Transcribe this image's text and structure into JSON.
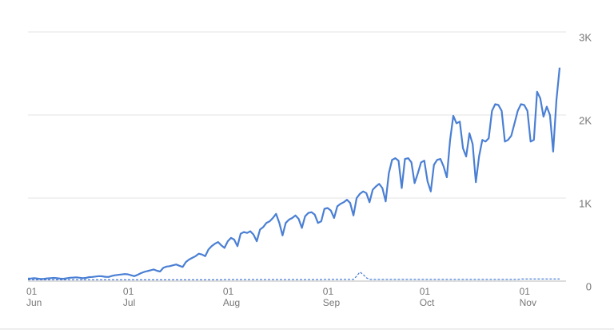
{
  "chart_data": {
    "type": "line",
    "categories": [
      "01\nJun",
      null,
      null,
      null,
      null,
      null,
      null,
      null,
      null,
      null,
      null,
      null,
      null,
      null,
      null,
      null,
      null,
      null,
      null,
      null,
      null,
      null,
      null,
      null,
      null,
      null,
      null,
      null,
      null,
      null,
      "01\nJul",
      null,
      null,
      null,
      null,
      null,
      null,
      null,
      null,
      null,
      null,
      null,
      null,
      null,
      null,
      null,
      null,
      null,
      null,
      null,
      null,
      null,
      null,
      null,
      null,
      null,
      null,
      null,
      null,
      null,
      null,
      "01\nAug",
      null,
      null,
      null,
      null,
      null,
      null,
      null,
      null,
      null,
      null,
      null,
      null,
      null,
      null,
      null,
      null,
      null,
      null,
      null,
      null,
      null,
      null,
      null,
      null,
      null,
      null,
      null,
      null,
      null,
      null,
      "01\nSep",
      null,
      null,
      null,
      null,
      null,
      null,
      null,
      null,
      null,
      null,
      null,
      null,
      null,
      null,
      null,
      null,
      null,
      null,
      null,
      null,
      null,
      null,
      null,
      null,
      null,
      null,
      null,
      null,
      null,
      "01\nOct",
      null,
      null,
      null,
      null,
      null,
      null,
      null,
      null,
      null,
      null,
      null,
      null,
      null,
      null,
      null,
      null,
      null,
      null,
      null,
      null,
      null,
      null,
      null,
      null,
      null,
      null,
      null,
      null,
      null,
      null,
      "01\nNov",
      null,
      null,
      null,
      null,
      null,
      null,
      null,
      null,
      null,
      null,
      null,
      null
    ],
    "series": [
      {
        "color": "#4a7fd4",
        "dashed": false,
        "values": [
          30,
          32,
          35,
          30,
          25,
          28,
          33,
          36,
          38,
          35,
          30,
          28,
          34,
          40,
          42,
          45,
          40,
          35,
          38,
          48,
          50,
          55,
          60,
          58,
          52,
          50,
          62,
          70,
          75,
          80,
          85,
          82,
          70,
          60,
          75,
          95,
          110,
          120,
          130,
          140,
          125,
          115,
          160,
          175,
          180,
          190,
          200,
          185,
          170,
          230,
          260,
          280,
          300,
          330,
          320,
          300,
          380,
          420,
          450,
          470,
          430,
          400,
          480,
          520,
          500,
          420,
          570,
          590,
          580,
          600,
          560,
          480,
          620,
          650,
          700,
          720,
          760,
          810,
          700,
          550,
          700,
          740,
          760,
          790,
          750,
          640,
          780,
          820,
          830,
          800,
          700,
          720,
          870,
          880,
          850,
          760,
          900,
          930,
          950,
          980,
          940,
          790,
          1000,
          1050,
          1080,
          1060,
          950,
          1100,
          1140,
          1170,
          1120,
          960,
          1300,
          1460,
          1480,
          1450,
          1120,
          1470,
          1480,
          1430,
          1180,
          1300,
          1430,
          1450,
          1200,
          1080,
          1400,
          1460,
          1470,
          1380,
          1250,
          1700,
          1990,
          1900,
          1920,
          1600,
          1500,
          1780,
          1650,
          1190,
          1500,
          1700,
          1680,
          1720,
          2050,
          2130,
          2120,
          2050,
          1680,
          1700,
          1750,
          1900,
          2050,
          2130,
          2120,
          2050,
          1680,
          1700,
          2280,
          2200,
          1980,
          2100,
          2000,
          1560,
          2180,
          2570
        ]
      },
      {
        "color": "#4a7fd4",
        "dashed": true,
        "values": [
          15,
          15,
          15,
          15,
          15,
          15,
          15,
          15,
          15,
          15,
          15,
          15,
          15,
          15,
          15,
          15,
          15,
          15,
          15,
          15,
          15,
          15,
          15,
          15,
          15,
          15,
          15,
          15,
          15,
          15,
          15,
          15,
          15,
          15,
          15,
          15,
          15,
          15,
          15,
          15,
          15,
          15,
          15,
          15,
          15,
          15,
          15,
          15,
          15,
          15,
          15,
          15,
          15,
          15,
          15,
          15,
          15,
          15,
          15,
          15,
          15,
          18,
          18,
          18,
          18,
          18,
          18,
          18,
          18,
          18,
          18,
          18,
          18,
          18,
          18,
          18,
          18,
          18,
          18,
          18,
          18,
          18,
          18,
          18,
          18,
          18,
          18,
          18,
          18,
          18,
          18,
          18,
          20,
          20,
          20,
          20,
          20,
          20,
          20,
          20,
          20,
          20,
          60,
          110,
          80,
          40,
          20,
          20,
          20,
          20,
          20,
          20,
          20,
          20,
          20,
          20,
          20,
          20,
          20,
          20,
          20,
          20,
          20,
          20,
          20,
          20,
          20,
          20,
          20,
          20,
          20,
          20,
          20,
          20,
          20,
          20,
          20,
          20,
          20,
          20,
          20,
          20,
          20,
          20,
          20,
          20,
          20,
          20,
          20,
          20,
          20,
          20,
          20,
          25,
          25,
          25,
          25,
          25,
          25,
          25,
          25,
          25,
          25,
          25,
          25,
          25
        ]
      }
    ],
    "ylim": [
      0,
      3000
    ],
    "yticks": [
      0,
      {
        "value": 1000,
        "label": "1K"
      },
      {
        "value": 2000,
        "label": "2K"
      },
      {
        "value": 3000,
        "label": "3K"
      }
    ],
    "grid": true
  }
}
